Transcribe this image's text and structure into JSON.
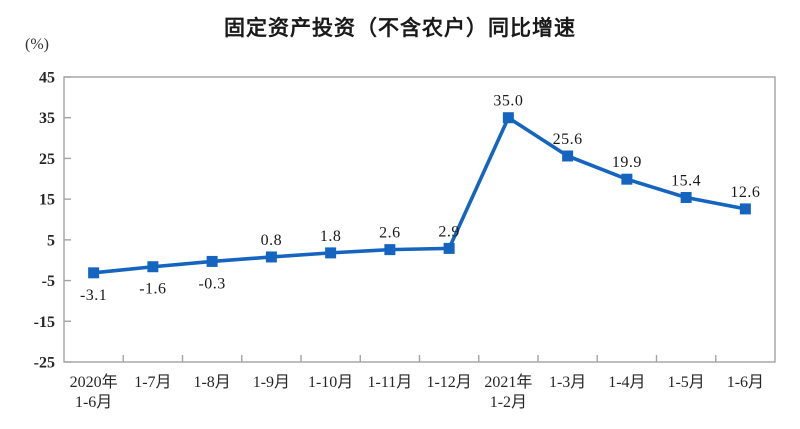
{
  "title": "固定资产投资（不含农户）同比增速",
  "y_axis_unit": "(%)",
  "chart_data": {
    "type": "line",
    "title": "固定资产投资（不含农户）同比增速",
    "ylabel": "(%)",
    "categories": [
      [
        "2020年",
        "1-6月"
      ],
      [
        "1-7月"
      ],
      [
        "1-8月"
      ],
      [
        "1-9月"
      ],
      [
        "1-10月"
      ],
      [
        "1-11月"
      ],
      [
        "1-12月"
      ],
      [
        "2021年",
        "1-2月"
      ],
      [
        "1-3月"
      ],
      [
        "1-4月"
      ],
      [
        "1-5月"
      ],
      [
        "1-6月"
      ]
    ],
    "values": [
      -3.1,
      -1.6,
      -0.3,
      0.8,
      1.8,
      2.6,
      2.9,
      35.0,
      25.6,
      19.9,
      15.4,
      12.6
    ],
    "point_labels": [
      "-3.1",
      "-1.6",
      "-0.3",
      "0.8",
      "1.8",
      "2.6",
      "2.9",
      "35.0",
      "25.6",
      "19.9",
      "15.4",
      "12.6"
    ],
    "yticks": [
      45,
      35,
      25,
      15,
      5,
      -5,
      -15,
      -25
    ],
    "ylim": [
      -25,
      45
    ],
    "grid": false,
    "legend": "none",
    "line_color": "#1565c0",
    "marker": "square",
    "axis_color": "#a3a3a3",
    "text_color": "#262626"
  }
}
